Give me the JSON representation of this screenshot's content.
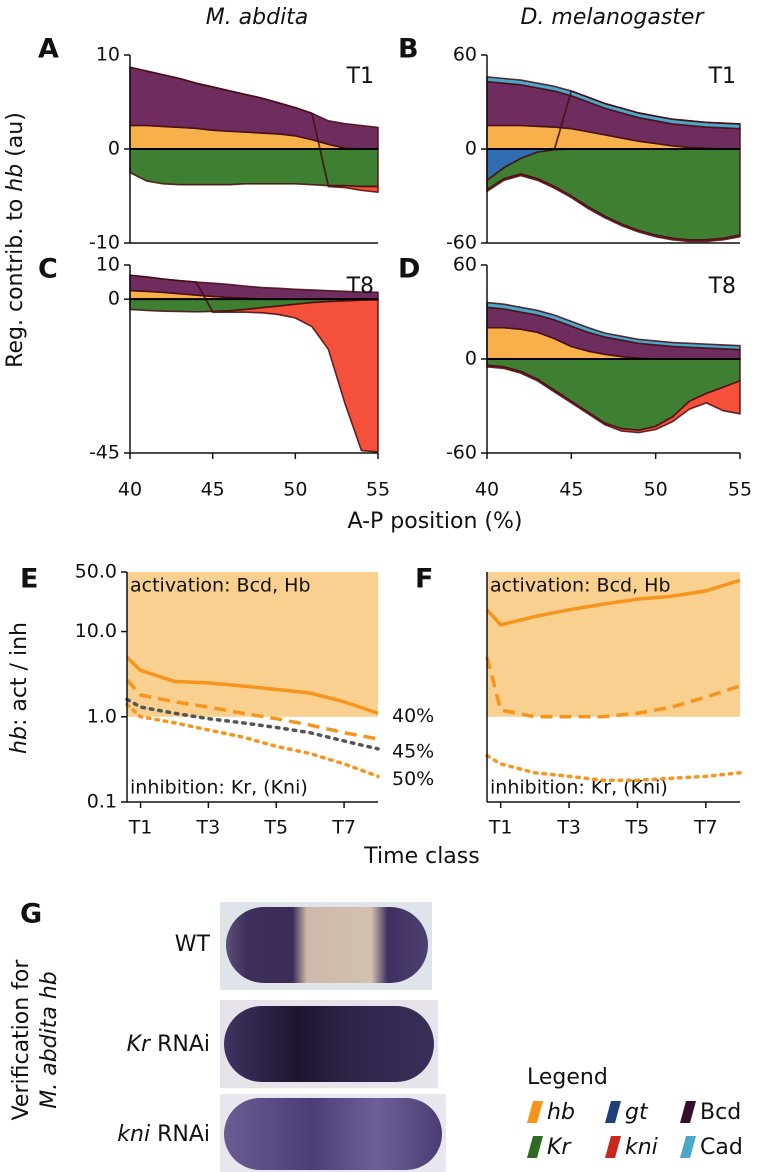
{
  "column_titles": [
    "M. abdita",
    "D. melanogaster"
  ],
  "axis_labels": {
    "top_y": [
      "Reg. contrib. to ",
      "hb",
      " (au)"
    ],
    "top_x": "A-P position (%)",
    "bottom_y": [
      "hb",
      ": act / inh"
    ],
    "bottom_x": "Time class"
  },
  "chart_data": [
    {
      "type": "stacked_area",
      "panel": "A",
      "tag": "T1",
      "x": [
        40,
        41,
        42,
        43,
        44,
        45,
        46,
        47,
        48,
        49,
        50,
        51,
        52,
        53,
        54,
        55
      ],
      "xlim": [
        40,
        55
      ],
      "ylim": [
        -10,
        10
      ],
      "yticks": [
        -10,
        0,
        10
      ],
      "series": [
        {
          "color": "#f8b04a",
          "values": [
            2.5,
            2.5,
            2.4,
            2.3,
            2.2,
            2.0,
            1.9,
            1.8,
            1.7,
            1.6,
            1.4,
            1.0,
            0.5,
            0.1,
            0,
            0
          ]
        },
        {
          "color": "#6e2c5f",
          "values": [
            6.2,
            5.8,
            5.5,
            5.2,
            4.8,
            4.6,
            4.3,
            4.0,
            3.7,
            3.3,
            3.0,
            2.8,
            2.5,
            2.6,
            2.5,
            2.3
          ]
        },
        {
          "color": "#3f7f31",
          "values": [
            -2.5,
            -3.4,
            -3.7,
            -3.8,
            -3.8,
            -3.8,
            -3.8,
            -3.7,
            -3.7,
            -3.7,
            -3.7,
            -3.8,
            -3.9,
            -3.9,
            -4.0,
            -4.0
          ]
        },
        {
          "color": "#f4503a",
          "values": [
            0,
            0,
            0,
            0,
            0,
            0,
            0,
            0,
            0,
            0,
            0,
            0,
            -0.1,
            -0.2,
            -0.4,
            -0.6
          ]
        }
      ]
    },
    {
      "type": "stacked_area",
      "panel": "B",
      "tag": "T1",
      "x": [
        40,
        41,
        42,
        43,
        44,
        45,
        46,
        47,
        48,
        49,
        50,
        51,
        52,
        53,
        54,
        55
      ],
      "xlim": [
        40,
        55
      ],
      "ylim": [
        -60,
        60
      ],
      "yticks": [
        -60,
        0,
        60
      ],
      "series": [
        {
          "color": "#f8b04a",
          "values": [
            15,
            15,
            15,
            14.5,
            14,
            13,
            11,
            9,
            7,
            5,
            3.5,
            2,
            1,
            0.5,
            0,
            0
          ]
        },
        {
          "color": "#6e2c5f",
          "values": [
            28,
            27,
            26,
            24.5,
            23,
            21,
            19,
            17,
            16,
            15,
            14.5,
            14,
            14,
            13.5,
            13.5,
            13
          ]
        },
        {
          "color": "#4aa8c8",
          "values": [
            3,
            3,
            3,
            3,
            3,
            3,
            3,
            3,
            3,
            3,
            3,
            3,
            3,
            3,
            3,
            3
          ]
        },
        {
          "color": "#2f6db0",
          "values": [
            -20,
            -12,
            -6,
            -2,
            -0.5,
            0,
            0,
            0,
            0,
            0,
            0,
            0,
            0,
            0,
            0,
            0
          ]
        },
        {
          "color": "#3f7f31",
          "values": [
            -6,
            -7,
            -10,
            -17,
            -23.5,
            -30,
            -37,
            -43,
            -48,
            -52,
            -55,
            -57,
            -58,
            -58,
            -57,
            -55
          ]
        },
        {
          "color": "#f4503a",
          "values": [
            -1,
            -1,
            -1,
            -1,
            -1,
            -1,
            -1,
            -1,
            -1,
            -1,
            -1,
            -1,
            -1,
            -1,
            -1,
            -1
          ]
        }
      ]
    },
    {
      "type": "stacked_area",
      "panel": "C",
      "tag": "T8",
      "x": [
        40,
        41,
        42,
        43,
        44,
        45,
        46,
        47,
        48,
        49,
        50,
        51,
        52,
        53,
        54,
        55
      ],
      "xlim": [
        40,
        55
      ],
      "ylim": [
        -45,
        10
      ],
      "yticks": [
        -45,
        0,
        10
      ],
      "xticks": [
        40,
        45,
        50,
        55
      ],
      "series": [
        {
          "color": "#f8b04a",
          "values": [
            2.5,
            2.3,
            2,
            1.6,
            1.2,
            0.8,
            0.5,
            0.3,
            0.1,
            0,
            0,
            0,
            0,
            0,
            0,
            0
          ]
        },
        {
          "color": "#6e2c5f",
          "values": [
            4.5,
            4.2,
            3.9,
            3.8,
            3.8,
            3.9,
            3.8,
            3.5,
            3.3,
            3.2,
            2.9,
            2.7,
            2.5,
            2.3,
            2.1,
            2.0
          ]
        },
        {
          "color": "#3f7f31",
          "values": [
            -3,
            -3.3,
            -3.5,
            -3.6,
            -3.7,
            -3.6,
            -3.4,
            -3.0,
            -2.5,
            -2.0,
            -1.5,
            -1,
            -0.7,
            -0.5,
            -0.3,
            -0.2
          ]
        },
        {
          "color": "#f4503a",
          "values": [
            0,
            0,
            0,
            0,
            0,
            -0.2,
            -0.4,
            -0.8,
            -1.5,
            -2.5,
            -4,
            -7,
            -14,
            -30,
            -44,
            -44.5
          ]
        }
      ]
    },
    {
      "type": "stacked_area",
      "panel": "D",
      "tag": "T8",
      "x": [
        40,
        41,
        42,
        43,
        44,
        45,
        46,
        47,
        48,
        49,
        50,
        51,
        52,
        53,
        54,
        55
      ],
      "xlim": [
        40,
        55
      ],
      "ylim": [
        -60,
        60
      ],
      "yticks": [
        -60,
        0,
        60
      ],
      "xticks": [
        40,
        45,
        50,
        55
      ],
      "series": [
        {
          "color": "#f8b04a",
          "values": [
            20,
            20,
            19,
            17,
            13,
            8,
            5,
            3,
            1.5,
            0.5,
            0,
            0,
            0,
            0,
            0,
            0
          ]
        },
        {
          "color": "#6e2c5f",
          "values": [
            13,
            12,
            11,
            11,
            12,
            13,
            12,
            11,
            10.5,
            9.5,
            9,
            8,
            7.5,
            7,
            6.5,
            6
          ]
        },
        {
          "color": "#4aa8c8",
          "values": [
            3,
            3,
            3,
            3,
            3,
            3,
            3,
            2.5,
            2.5,
            2.5,
            2.5,
            2.5,
            2.5,
            2.5,
            2.5,
            2.5
          ]
        },
        {
          "color": "#3f7f31",
          "values": [
            -4,
            -5,
            -8,
            -13,
            -20,
            -27,
            -34,
            -41,
            -44.5,
            -45.5,
            -43,
            -37,
            -27,
            -22,
            -18,
            -14
          ]
        },
        {
          "color": "#f4503a",
          "values": [
            -1,
            -1,
            -1,
            -1,
            -1,
            -1,
            -1,
            -1,
            -1.5,
            -1.5,
            -2,
            -3,
            -5,
            -6,
            -15,
            -21
          ]
        }
      ]
    },
    {
      "type": "line",
      "panel": "E",
      "log_y": true,
      "x": [
        0.6,
        1,
        2,
        3,
        4,
        5,
        6,
        7,
        8
      ],
      "xlim": [
        0.6,
        8
      ],
      "xticks": [
        {
          "value": 1,
          "label": "T1"
        },
        {
          "value": 3,
          "label": "T3"
        },
        {
          "value": 5,
          "label": "T5"
        },
        {
          "value": 7,
          "label": "T7"
        }
      ],
      "ylim": [
        0.1,
        50
      ],
      "yticks": [
        0.1,
        {
          "value": 1,
          "label": "1.0"
        },
        {
          "value": 10,
          "label": "10.0"
        },
        {
          "value": 50,
          "label": "50.0"
        }
      ],
      "shaded_range": [
        1,
        50
      ],
      "shaded_color": "#f9d08f",
      "shaded_labels": [
        "activation: Bcd, Hb",
        "inhibition: Kr, (Kni)"
      ],
      "series": [
        {
          "name": "40%",
          "color": "#f7941d",
          "style": "solid",
          "values": [
            5,
            3.5,
            2.6,
            2.5,
            2.3,
            2.1,
            1.9,
            1.5,
            1.1
          ]
        },
        {
          "color": "#f7941d",
          "style": "dashed",
          "values": [
            2.7,
            1.8,
            1.5,
            1.3,
            1.1,
            0.95,
            0.8,
            0.65,
            0.55
          ]
        },
        {
          "name": "45%",
          "color": "#555555",
          "style": "dotted",
          "values": [
            1.6,
            1.3,
            1.1,
            0.95,
            0.85,
            0.75,
            0.65,
            0.52,
            0.42
          ]
        },
        {
          "name": "50%",
          "color": "#f7941d",
          "style": "dotted",
          "values": [
            1.4,
            1.0,
            0.85,
            0.7,
            0.58,
            0.45,
            0.37,
            0.28,
            0.2
          ]
        }
      ]
    },
    {
      "type": "line",
      "panel": "F",
      "log_y": true,
      "x": [
        0.6,
        1,
        2,
        3,
        4,
        5,
        6,
        7,
        8
      ],
      "xlim": [
        0.6,
        8
      ],
      "xticks": [
        {
          "value": 1,
          "label": "T1"
        },
        {
          "value": 3,
          "label": "T3"
        },
        {
          "value": 5,
          "label": "T5"
        },
        {
          "value": 7,
          "label": "T7"
        }
      ],
      "ylim": [
        0.1,
        50
      ],
      "shaded_range": [
        1,
        50
      ],
      "shaded_color": "#f9d08f",
      "shaded_labels": [
        "activation: Bcd, Hb",
        "inhibition: Kr, (Kni)"
      ],
      "series": [
        {
          "color": "#f7941d",
          "style": "solid",
          "values": [
            18,
            12,
            15,
            18,
            21,
            24,
            26,
            30,
            40
          ]
        },
        {
          "color": "#f7941d",
          "style": "dashed",
          "values": [
            5,
            1.2,
            1.0,
            1.0,
            1.0,
            1.1,
            1.3,
            1.7,
            2.3
          ]
        },
        {
          "color": "#f7941d",
          "style": "dotted",
          "values": [
            0.35,
            0.28,
            0.22,
            0.2,
            0.18,
            0.18,
            0.19,
            0.2,
            0.22
          ]
        }
      ]
    }
  ],
  "panel_g": {
    "letter": "G",
    "side_label": [
      "Verification for",
      "M. abdita hb"
    ],
    "rows": [
      "WT",
      [
        "Kr",
        " RNAi"
      ],
      [
        "kni",
        " RNAi"
      ]
    ]
  },
  "legend": {
    "title": "Legend",
    "items": [
      {
        "name": "hb",
        "color": "#f7941d",
        "italic": true
      },
      {
        "name": "gt",
        "color": "#1f3f7a",
        "italic": true
      },
      {
        "name": "Bcd",
        "color": "#3a0e2e",
        "italic": false
      },
      {
        "name": "Kr",
        "color": "#2e6a22",
        "italic": true
      },
      {
        "name": "kni",
        "color": "#c8281c",
        "italic": true
      },
      {
        "name": "Cad",
        "color": "#4aa8c8",
        "italic": false
      }
    ]
  }
}
